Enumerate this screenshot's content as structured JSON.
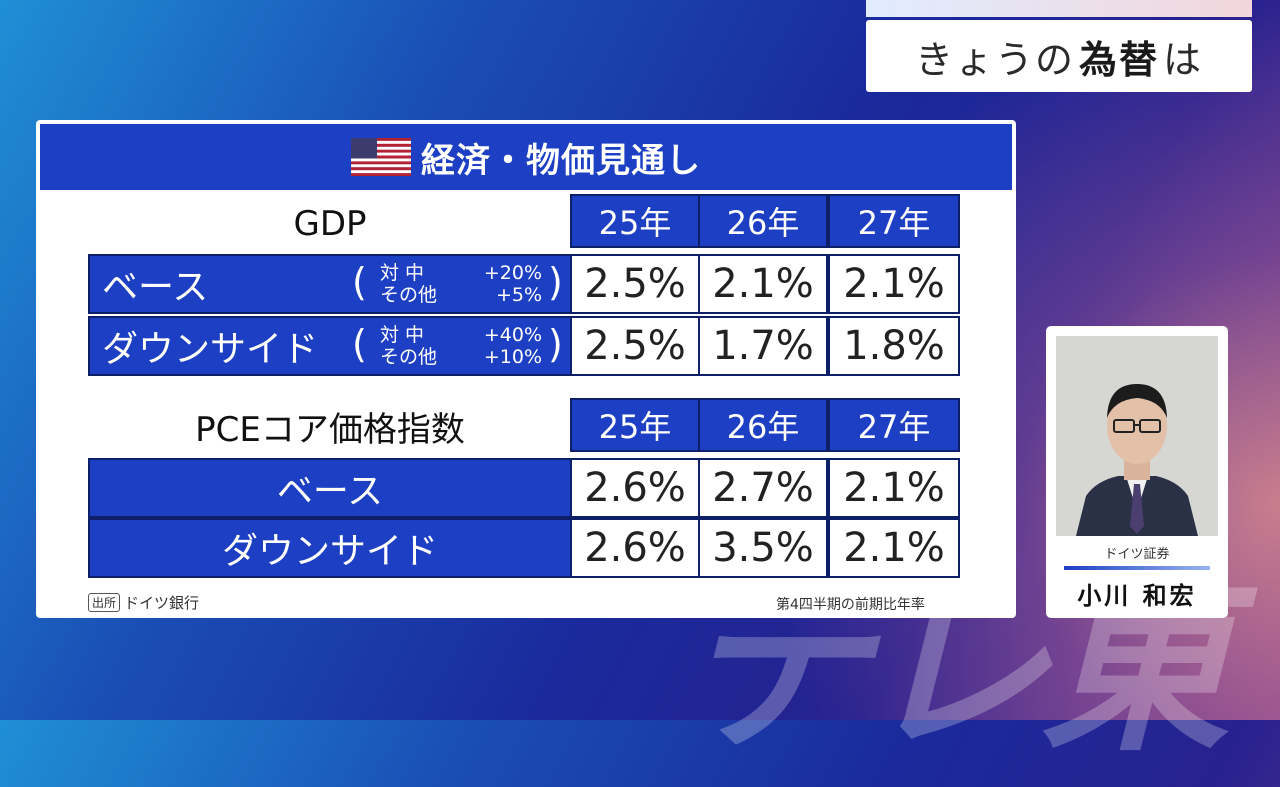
{
  "topic": {
    "prefix": "きょうの",
    "bold": "為替",
    "suffix": "は"
  },
  "panel": {
    "title": "経済・物価見通し",
    "gdp": {
      "title": "GDP",
      "years": [
        "25年",
        "26年",
        "27年"
      ],
      "rows": [
        {
          "label": "ベース",
          "scenario": [
            [
              "対 中",
              "+20%"
            ],
            [
              "その他",
              "+5%"
            ]
          ],
          "values": [
            "2.5%",
            "2.1%",
            "2.1%"
          ]
        },
        {
          "label": "ダウンサイド",
          "scenario": [
            [
              "対 中",
              "+40%"
            ],
            [
              "その他",
              "+10%"
            ]
          ],
          "values": [
            "2.5%",
            "1.7%",
            "1.8%"
          ]
        }
      ]
    },
    "pce": {
      "title": "PCEコア価格指数",
      "years": [
        "25年",
        "26年",
        "27年"
      ],
      "rows": [
        {
          "label": "ベース",
          "values": [
            "2.6%",
            "2.7%",
            "2.1%"
          ]
        },
        {
          "label": "ダウンサイド",
          "values": [
            "2.6%",
            "3.5%",
            "2.1%"
          ]
        }
      ]
    },
    "source_tag": "出所",
    "source": "ドイツ銀行",
    "note": "第4四半期の前期比年率"
  },
  "person": {
    "company": "ドイツ証券",
    "name": "小川 和宏"
  },
  "watermark": "テレ東",
  "colors": {
    "accent_blue": "#1d3fc4"
  }
}
